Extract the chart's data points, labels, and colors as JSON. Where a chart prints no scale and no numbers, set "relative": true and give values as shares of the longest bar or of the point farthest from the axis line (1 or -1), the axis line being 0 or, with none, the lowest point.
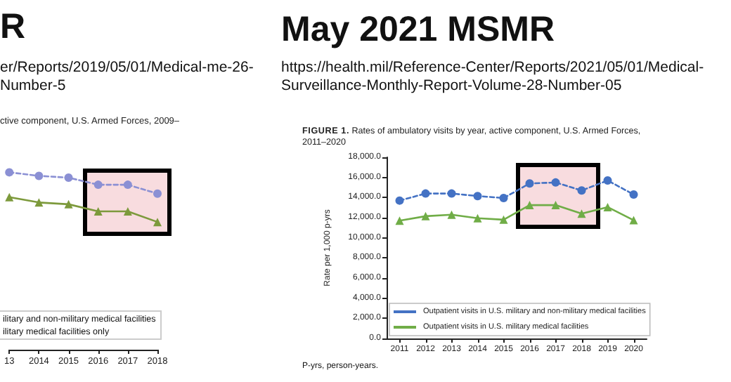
{
  "chart_data": [
    {
      "type": "line",
      "title": "ctive component, U.S. Armed Forces, 2009–",
      "relative": true,
      "categories": [
        "13",
        "2014",
        "2015",
        "2016",
        "2017",
        "2018"
      ],
      "series": [
        {
          "color": "#8b90d4",
          "marker": "circle",
          "line_style": "dashed",
          "values": [
            1,
            0.98,
            0.97,
            0.93,
            0.93,
            0.88
          ]
        },
        {
          "color": "#7d9a3c",
          "marker": "triangle",
          "line_style": "solid",
          "values": [
            0.86,
            0.83,
            0.82,
            0.78,
            0.78,
            0.72
          ]
        }
      ],
      "annotations": [
        "R",
        "er/Reports/2019/05/01/Medical-me-26-Number-5",
        "ilitary and non-military medical facilities",
        "ilitary medical facilities only"
      ],
      "grid": false
    },
    {
      "type": "line",
      "title": "FIGURE 1. Rates of ambulatory visits by year, active component, U.S. Armed Forces, 2011–2020",
      "ylabel": "Rate per 1,000 p-yrs",
      "categories": [
        "2011",
        "2012",
        "2013",
        "2014",
        "2015",
        "2016",
        "2017",
        "2018",
        "2019",
        "2020"
      ],
      "series": [
        {
          "name": "Outpatient visits in U.S. military and non-military medical facilities",
          "color": "#4472c4",
          "marker": "circle",
          "line_style": "dashed",
          "values": [
            13700,
            14400,
            14400,
            14150,
            13950,
            15400,
            15500,
            14700,
            15700,
            14300
          ]
        },
        {
          "name": "Outpatient visits in U.S. military medical facilities",
          "color": "#70ad47",
          "marker": "triangle",
          "line_style": "solid",
          "values": [
            11700,
            12150,
            12300,
            11950,
            11800,
            13250,
            13250,
            12400,
            13050,
            11750
          ]
        }
      ],
      "ylim": [
        0,
        18000
      ],
      "yticks": [
        {
          "value": 0,
          "label": "0.0"
        },
        {
          "value": 2000,
          "label": "2,000.0"
        },
        {
          "value": 4000,
          "label": "4,000.0"
        },
        {
          "value": 6000,
          "label": "6,000.0"
        },
        {
          "value": 8000,
          "label": "8,000.0"
        },
        {
          "value": 10000,
          "label": "10,000.0"
        },
        {
          "value": 12000,
          "label": "12,000.0"
        },
        {
          "value": 14000,
          "label": "14,000.0"
        },
        {
          "value": 16000,
          "label": "16,000.0"
        },
        {
          "value": 18000,
          "label": "18,000.0"
        }
      ],
      "legend": "bottom left",
      "grid": false,
      "annotations": [
        "May 2021 MSMR",
        "https://health.mil/Reference-Center/Reports/2021/05/01/Medical-Surveillance-Monthly-Report-Volume-28-Number-05",
        "P-yrs, person-years."
      ]
    }
  ]
}
